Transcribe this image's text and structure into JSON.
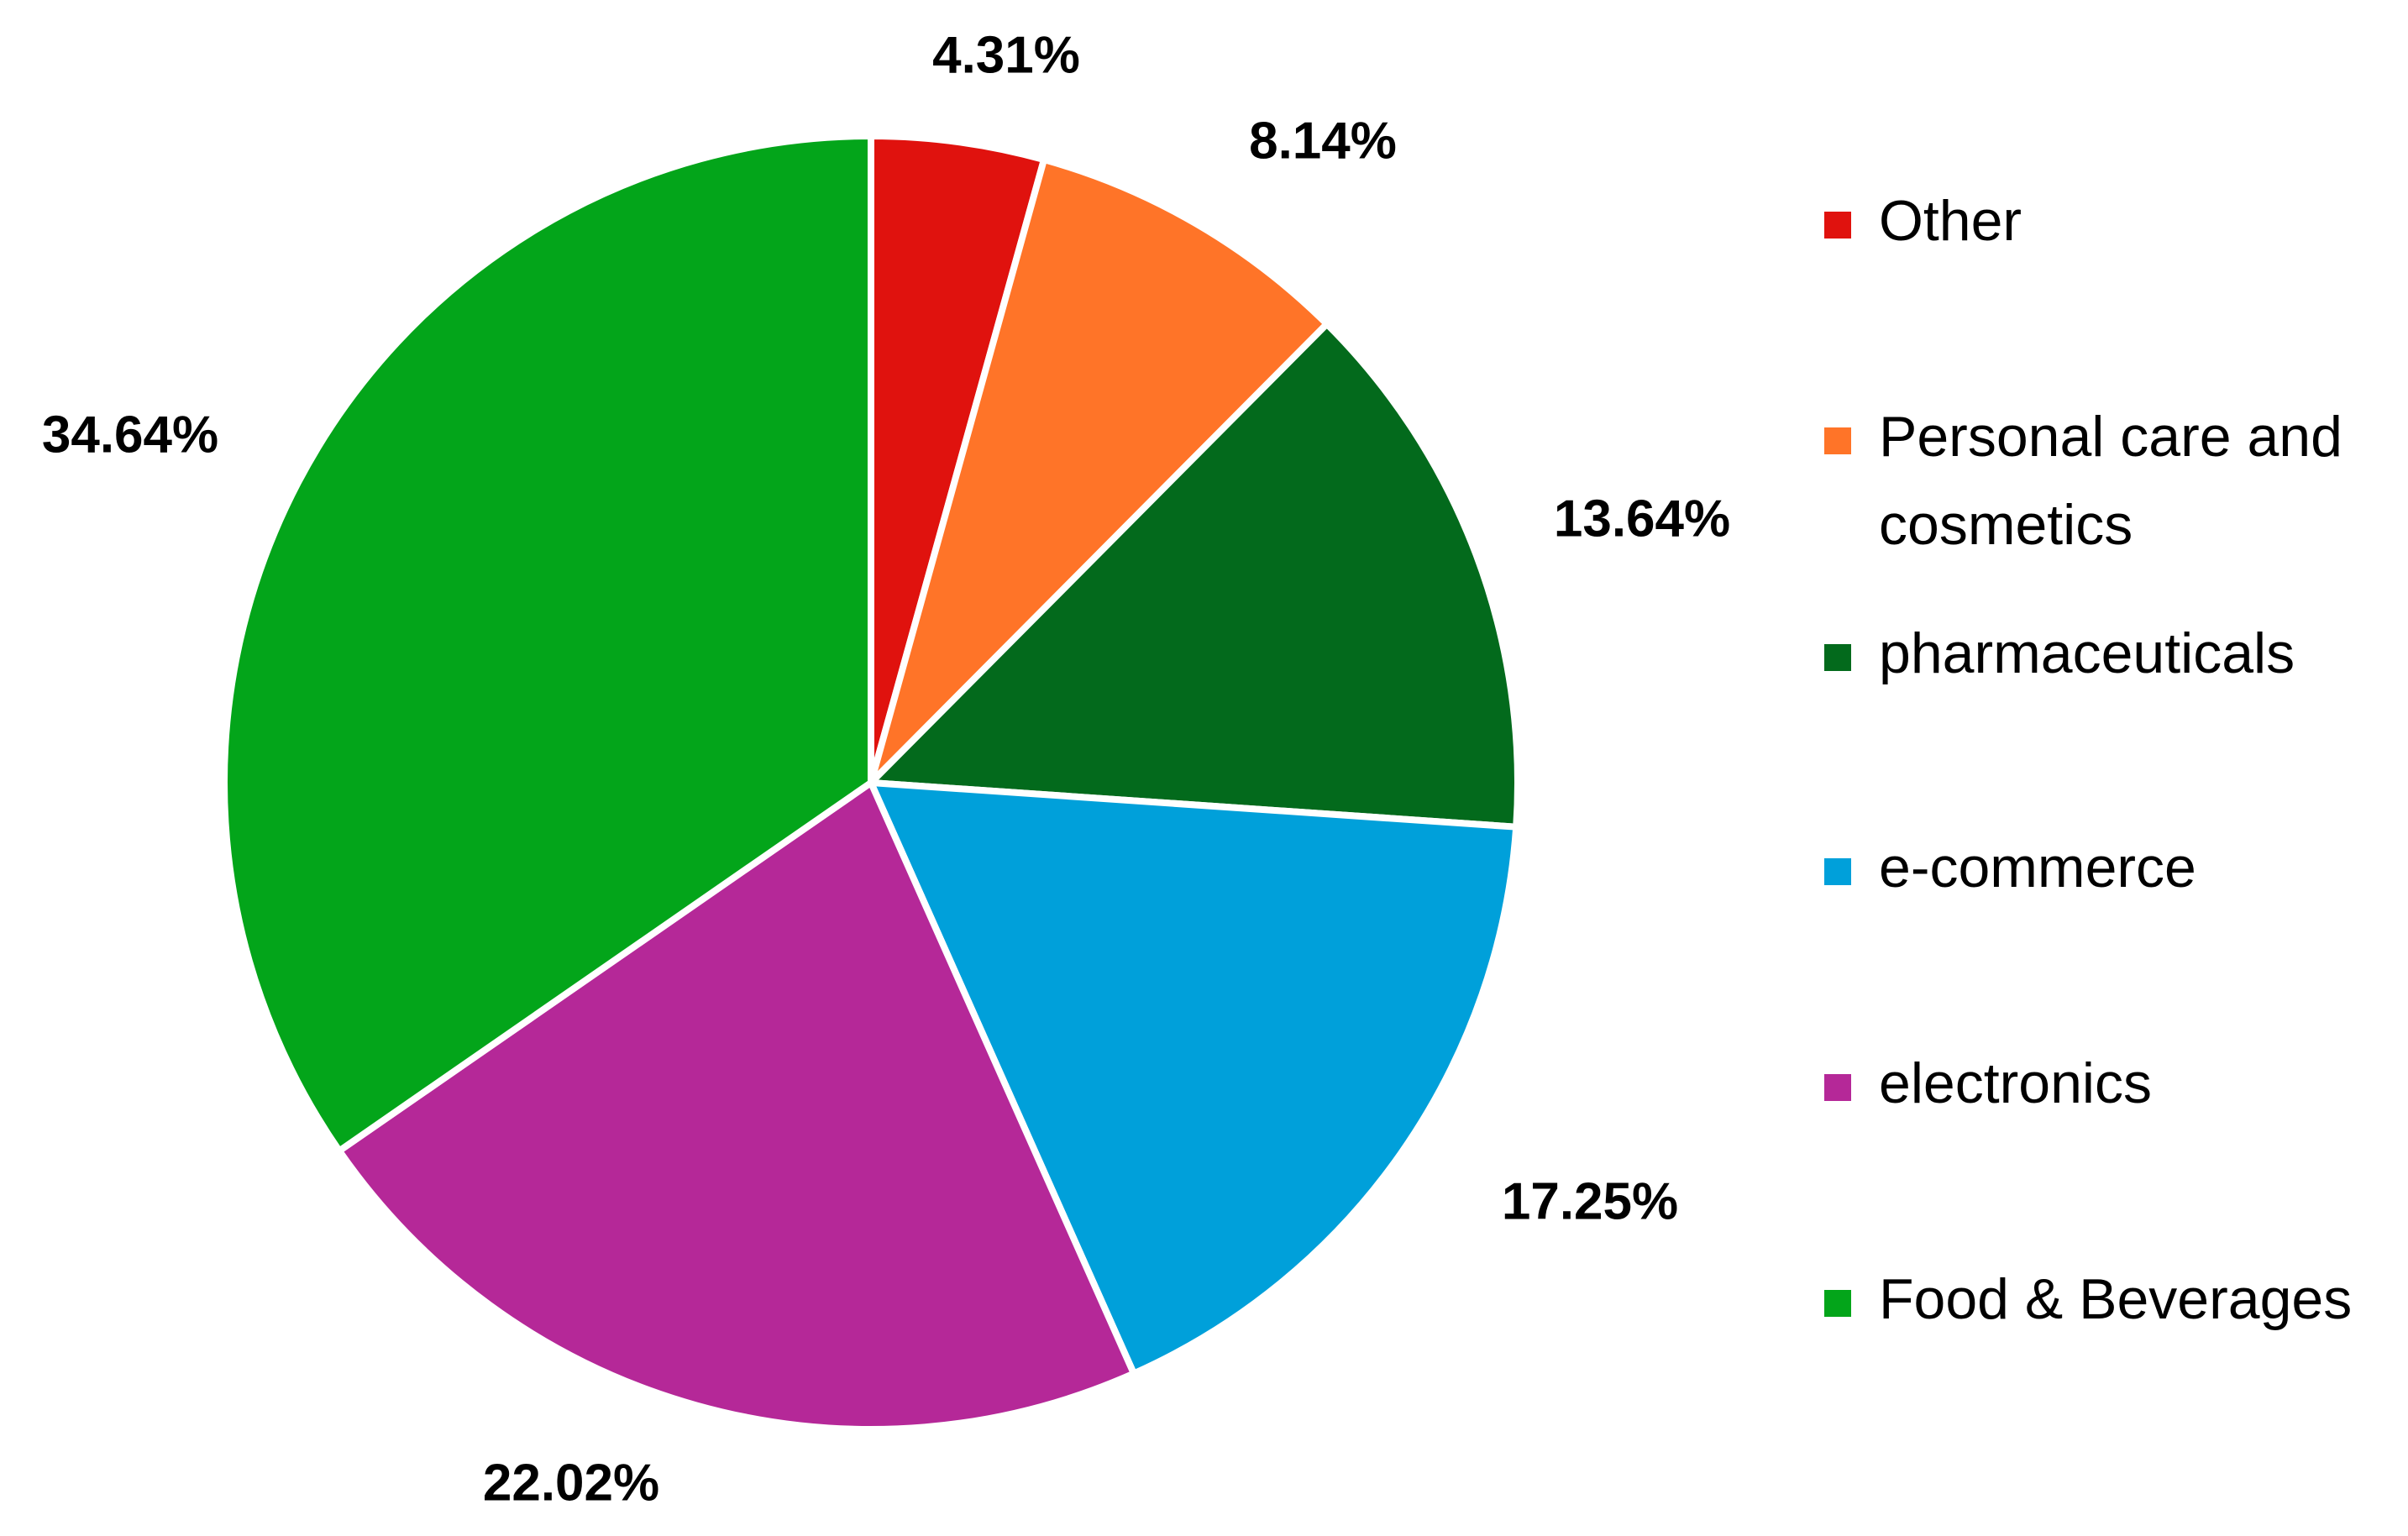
{
  "chart_data": {
    "type": "pie",
    "title": "",
    "start": "top",
    "direction": "clockwise",
    "legend_position": "right",
    "slices": [
      {
        "name": "Other",
        "value": 4.31,
        "label": "4.31%",
        "color": "#E0120E"
      },
      {
        "name": "Personal care and cosmetics",
        "legend_lines": [
          "Personal care and",
          "cosmetics"
        ],
        "value": 8.14,
        "label": "8.14%",
        "color": "#FF7428"
      },
      {
        "name": "pharmaceuticals",
        "value": 13.64,
        "label": "13.64%",
        "color": "#036A1C"
      },
      {
        "name": "e-commerce",
        "value": 17.25,
        "label": "17.25%",
        "color": "#00A0DA"
      },
      {
        "name": "electronics",
        "value": 22.02,
        "label": "22.02%",
        "color": "#B52898"
      },
      {
        "name": "Food & Beverages",
        "value": 34.64,
        "label": "34.64%",
        "color": "#03A51A"
      }
    ]
  }
}
